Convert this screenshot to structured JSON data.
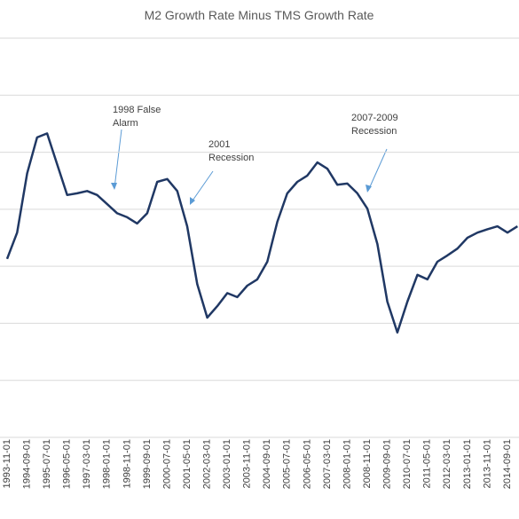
{
  "chart_data": {
    "type": "line",
    "title": "M2 Growth Rate Minus TMS Growth Rate",
    "categories": [
      "1993-11-01",
      null,
      "1994-09-01",
      null,
      "1995-07-01",
      null,
      "1996-05-01",
      null,
      "1997-03-01",
      null,
      "1998-01-01",
      null,
      "1998-11-01",
      null,
      "1999-09-01",
      null,
      "2000-07-01",
      null,
      "2001-05-01",
      null,
      "2002-03-01",
      null,
      "2003-01-01",
      null,
      "2003-11-01",
      null,
      "2004-09-01",
      null,
      "2005-07-01",
      null,
      "2006-05-01",
      null,
      "2007-03-01",
      null,
      "2008-01-01",
      null,
      "2008-11-01",
      null,
      "2009-09-01",
      null,
      "2010-07-01",
      null,
      "2011-05-01",
      null,
      "2012-03-01",
      null,
      "2013-01-01",
      null,
      "2013-11-01",
      null,
      "2014-09-01",
      null
    ],
    "series": [
      {
        "name": "M2 Growth Rate Minus TMS Growth Rate",
        "color": "#203864",
        "values": [
          3.13,
          3.59,
          4.63,
          5.26,
          5.33,
          4.79,
          4.25,
          4.28,
          4.32,
          4.25,
          4.09,
          3.93,
          3.86,
          3.75,
          3.93,
          4.48,
          4.53,
          4.32,
          3.7,
          2.69,
          2.1,
          2.3,
          2.53,
          2.46,
          2.66,
          2.77,
          3.08,
          3.78,
          4.28,
          4.48,
          4.59,
          4.82,
          4.71,
          4.43,
          4.45,
          4.28,
          4.01,
          3.39,
          2.38,
          1.84,
          2.38,
          2.85,
          2.77,
          3.08,
          3.19,
          3.31,
          3.5,
          3.59,
          3.65,
          3.7,
          3.59,
          3.7
        ]
      }
    ],
    "ylim": [
      0,
      7
    ],
    "yticks": [
      1,
      2,
      3,
      4,
      5,
      6,
      7
    ],
    "grid": true,
    "annotations": [
      {
        "lines": [
          "1998 False",
          "Alarm"
        ],
        "index": 11
      },
      {
        "lines": [
          "2001",
          "Recession"
        ],
        "index": 18
      },
      {
        "lines": [
          "2007-2009",
          "Recession"
        ],
        "index": 36
      }
    ]
  }
}
